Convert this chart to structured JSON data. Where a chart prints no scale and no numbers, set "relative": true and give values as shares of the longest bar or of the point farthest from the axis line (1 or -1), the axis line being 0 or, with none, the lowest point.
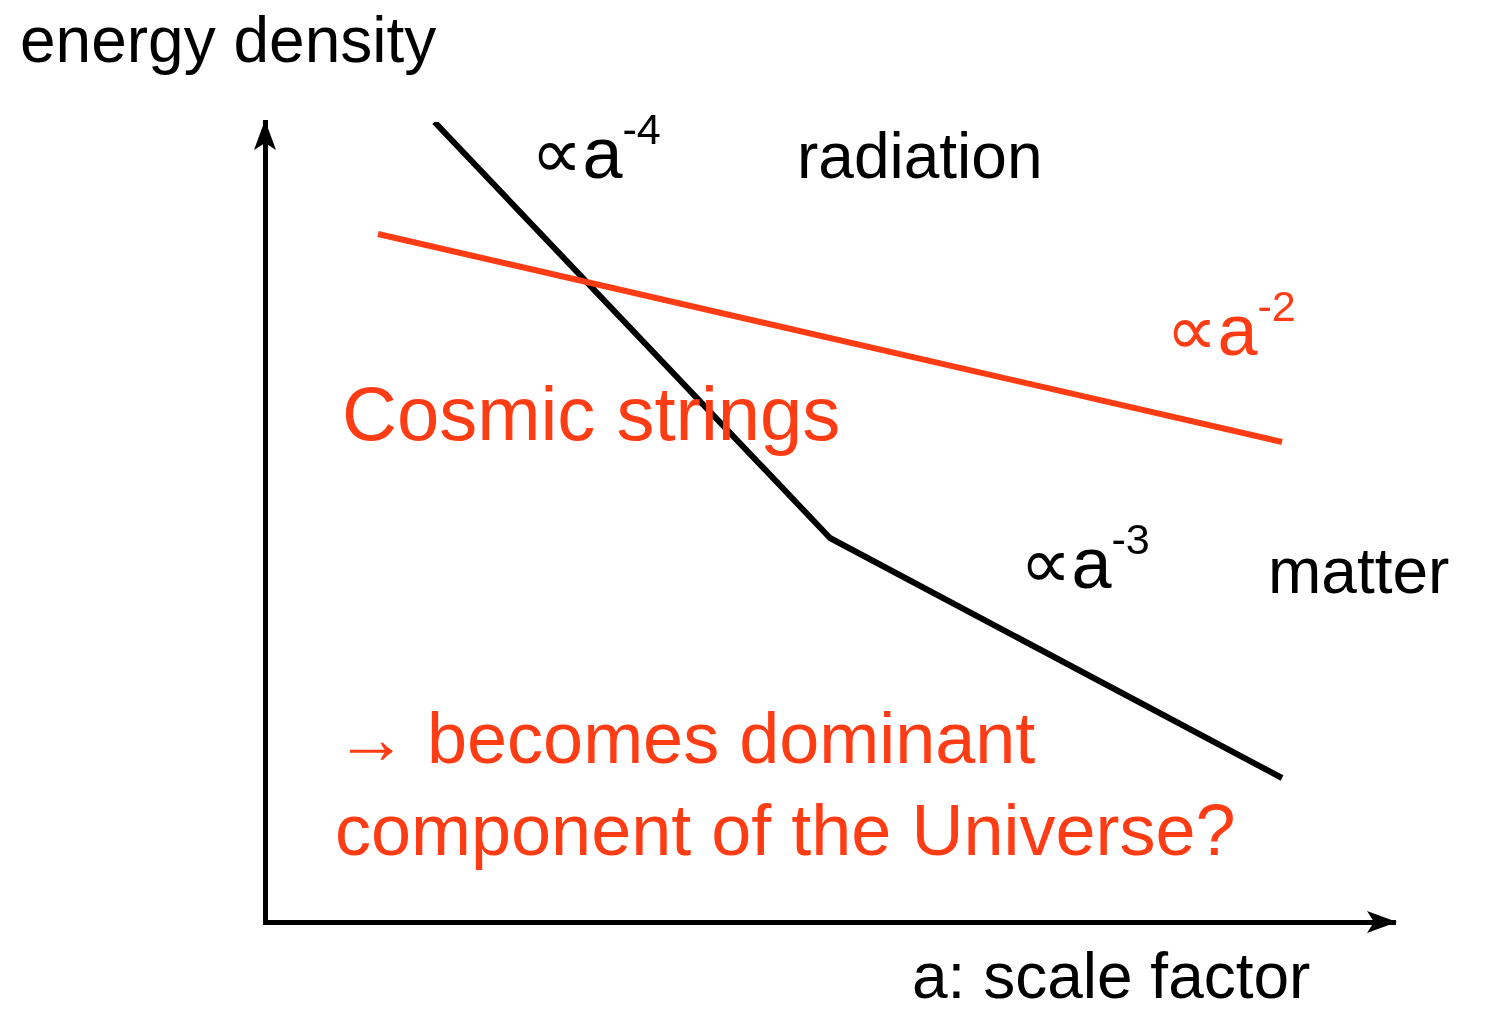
{
  "chart_data": {
    "type": "line",
    "relative": true,
    "ylabel": "energy density",
    "xlabel": "a: scale factor",
    "categories": [
      null,
      null,
      null,
      null,
      null,
      null,
      null,
      null,
      null,
      null,
      null,
      null,
      null,
      null,
      null,
      null,
      null,
      null,
      null,
      null,
      null
    ],
    "series": [
      {
        "color": "#000000",
        "values": [
          null,
          null,
          null,
          1,
          null,
          null,
          null,
          null,
          null,
          null,
          0.48,
          null,
          null,
          null,
          null,
          null,
          null,
          null,
          0.18,
          null,
          null
        ]
      },
      {
        "name": "Cosmic strings",
        "color": "#ff3c14",
        "values": [
          null,
          null,
          0.86,
          null,
          null,
          null,
          null,
          null,
          null,
          null,
          null,
          null,
          null,
          null,
          null,
          null,
          null,
          null,
          0.6,
          null,
          null
        ]
      }
    ],
    "annotations": [
      "∝a$^{-4}$",
      "radiation",
      "∝a$^{-2}$",
      "∝a$^{-3}$",
      "matter",
      "→ becomes dominant component of the Universe?"
    ],
    "marker": "none",
    "grid": false,
    "legend": false
  }
}
